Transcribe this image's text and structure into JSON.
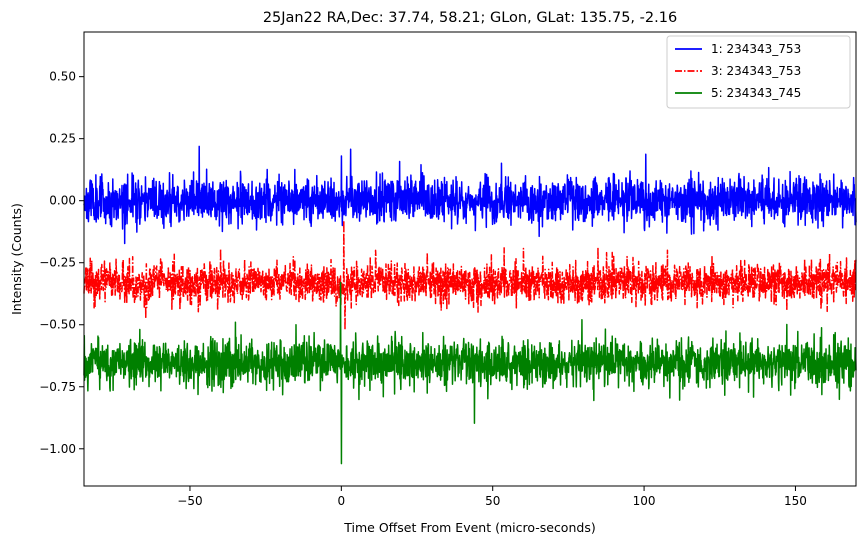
{
  "chart_data": {
    "type": "line",
    "title": "25Jan22 RA,Dec:   37.74,  58.21; GLon, GLat:  135.75,  -2.16",
    "xlabel": "Time Offset From Event (micro-seconds)",
    "ylabel": "Intensity (Counts)",
    "xlim": [
      -85,
      170
    ],
    "ylim": [
      -1.15,
      0.68
    ],
    "x_ticks": [
      -50,
      0,
      50,
      100,
      150
    ],
    "x_tick_labels": [
      "−50",
      "0",
      "50",
      "100",
      "150"
    ],
    "y_ticks": [
      0.5,
      0.25,
      0.0,
      -0.25,
      -0.5,
      -0.75,
      -1.0
    ],
    "y_tick_labels": [
      "0.50",
      "0.25",
      "0.00",
      "−0.25",
      "−0.50",
      "−0.75",
      "−1.00"
    ],
    "grid": false,
    "legend_position": "top-right",
    "series": [
      {
        "name": "1: 234343_753",
        "color": "#0000ff",
        "style": "solid",
        "mean": 0.0,
        "noise": 0.045,
        "seed": 11,
        "spikes": [
          [
            0.0,
            0.18
          ],
          [
            0.3,
            -0.1
          ]
        ]
      },
      {
        "name": "3: 234343_753",
        "color": "#ff0000",
        "style": "dashdot",
        "mean": -0.33,
        "noise": 0.04,
        "seed": 23,
        "spikes": [
          [
            0.8,
            -0.08
          ],
          [
            1.2,
            -0.52
          ],
          [
            53.8,
            -0.19
          ]
        ]
      },
      {
        "name": "5: 234343_745",
        "color": "#008000",
        "style": "solid",
        "mean": -0.655,
        "noise": 0.045,
        "seed": 37,
        "spikes": [
          [
            0.0,
            -1.06
          ],
          [
            -0.3,
            -0.33
          ],
          [
            -35.0,
            -0.49
          ],
          [
            -15.0,
            -0.5
          ],
          [
            79.5,
            -0.48
          ]
        ]
      }
    ]
  }
}
